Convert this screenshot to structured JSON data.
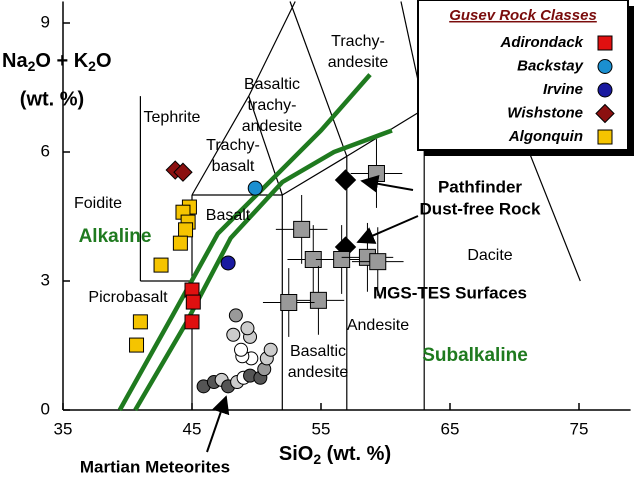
{
  "chart_data": {
    "type": "scatter",
    "xlim": [
      35,
      79
    ],
    "ylim": [
      0,
      9.5
    ],
    "xticks": [
      35,
      45,
      55,
      65,
      75
    ],
    "yticks": [
      0,
      3,
      6,
      9
    ],
    "x_label": [
      "SiO",
      "2",
      " (wt. %)"
    ],
    "y_label": [
      "Na",
      "2",
      "O + K",
      "2",
      "O",
      "(wt. %)"
    ],
    "field_boundaries": [
      [
        41,
        3,
        41,
        7.3
      ],
      [
        41,
        3,
        45,
        3
      ],
      [
        45,
        0,
        45,
        5
      ],
      [
        45,
        5,
        52,
        5
      ],
      [
        52,
        0,
        52,
        5
      ],
      [
        57,
        0,
        57,
        5.9
      ],
      [
        52,
        5,
        57,
        5.9
      ],
      [
        57,
        5.9,
        63,
        7
      ],
      [
        63,
        0,
        63,
        7
      ],
      [
        45,
        5,
        49.4,
        7.3
      ],
      [
        52,
        5,
        49.4,
        7.3
      ],
      [
        49.4,
        7.3,
        53,
        9.5
      ],
      [
        57,
        5.9,
        52.6,
        9.5
      ],
      [
        63,
        7,
        61.2,
        9.5
      ],
      [
        66.5,
        9.5,
        75.1,
        3
      ]
    ],
    "field_labels": [
      [
        "Trachy-",
        "andesite"
      ],
      [
        "Basaltic",
        "trachy-",
        "andesite"
      ],
      [
        "Tephrite"
      ],
      [
        "Trachy-",
        "basalt"
      ],
      [
        "Foidite"
      ],
      [
        "Basalt"
      ],
      [
        "Picrobasalt"
      ],
      [
        "Basaltic",
        "andesite"
      ],
      [
        "Andesite"
      ],
      [
        "Dacite"
      ]
    ],
    "divide_labels": [
      "Alkaline",
      "Subalkaline"
    ],
    "divides": [
      {
        "color": "#1f7a1f",
        "x": [
          39.4,
          43.5,
          47,
          50,
          55,
          58.8
        ],
        "values": [
          0,
          2.2,
          4.1,
          5,
          6.5,
          7.8
        ]
      },
      {
        "color": "#1f7a1f",
        "x": [
          40.6,
          44.5,
          48,
          52,
          56,
          60.5
        ],
        "values": [
          0,
          2,
          4,
          5.3,
          6,
          6.5
        ]
      }
    ],
    "legend_title": "Gusev Rock Classes",
    "series": [
      {
        "name": "Adirondack",
        "color": "#e01010",
        "marker": "square",
        "x": [
          45,
          45.1,
          45
        ],
        "values": [
          2.79,
          2.51,
          2.05
        ]
      },
      {
        "name": "Backstay",
        "color": "#1b8fd0",
        "marker": "circle",
        "x": [
          49.9
        ],
        "values": [
          5.16
        ]
      },
      {
        "name": "Irvine",
        "color": "#1a1aa0",
        "marker": "circle",
        "x": [
          47.8
        ],
        "values": [
          3.42
        ]
      },
      {
        "name": "Wishstone",
        "color": "#8b1010",
        "marker": "diamond",
        "x": [
          43.7,
          44.3
        ],
        "values": [
          5.58,
          5.53
        ]
      },
      {
        "name": "Algonquin",
        "color": "#f5c400",
        "marker": "square",
        "x": [
          44.8,
          44.3,
          44.7,
          44.5,
          44.1,
          42.6,
          41,
          40.7
        ],
        "values": [
          4.72,
          4.6,
          4.37,
          4.19,
          3.88,
          3.37,
          2.05,
          1.51
        ]
      }
    ],
    "annotated_sets": [
      {
        "label": [
          "Pathfinder",
          "Dust-free Rock"
        ],
        "color": "#000000",
        "marker": "diamond",
        "x": [
          56.9,
          56.9
        ],
        "values": [
          5.35,
          3.79
        ]
      },
      {
        "label": [
          "MGS-TES Surfaces"
        ],
        "color": "#999999",
        "marker": "square",
        "x": [
          59.3,
          53.5,
          54.4,
          56.6,
          58.6,
          59.4,
          54.8,
          52.5
        ],
        "values": [
          5.5,
          4.2,
          3.5,
          3.5,
          3.55,
          3.45,
          2.55,
          2.5
        ],
        "xerr": [
          2,
          2,
          2,
          2,
          2,
          2,
          2,
          2
        ],
        "yerr": [
          0.8,
          0.8,
          0.8,
          0.8,
          0.8,
          0.8,
          0.8,
          0.8
        ]
      },
      {
        "label": [
          "Martian Meteorites"
        ],
        "color": "#999999",
        "marker": "circle",
        "x": [
          45.9,
          46.7,
          47.3,
          47.8,
          48.5,
          49,
          49.5,
          50.3,
          50.6,
          49.6,
          50.8,
          51.1,
          48.9,
          48.8,
          49.5,
          48.2,
          49.3,
          48.4
        ],
        "values": [
          0.55,
          0.65,
          0.7,
          0.55,
          0.65,
          0.75,
          0.8,
          0.75,
          0.95,
          1.2,
          1.2,
          1.4,
          1.25,
          1.4,
          1.7,
          1.75,
          1.9,
          2.2
        ],
        "colors": [
          "#555555",
          "#555555",
          "#cccccc",
          "#555555",
          "#cccccc",
          "#ffffff",
          "#555555",
          "#555555",
          "#999999",
          "#ffffff",
          "#cccccc",
          "#cccccc",
          "#ffffff",
          "#ffffff",
          "#cccccc",
          "#cccccc",
          "#cccccc",
          "#999999"
        ]
      }
    ]
  }
}
